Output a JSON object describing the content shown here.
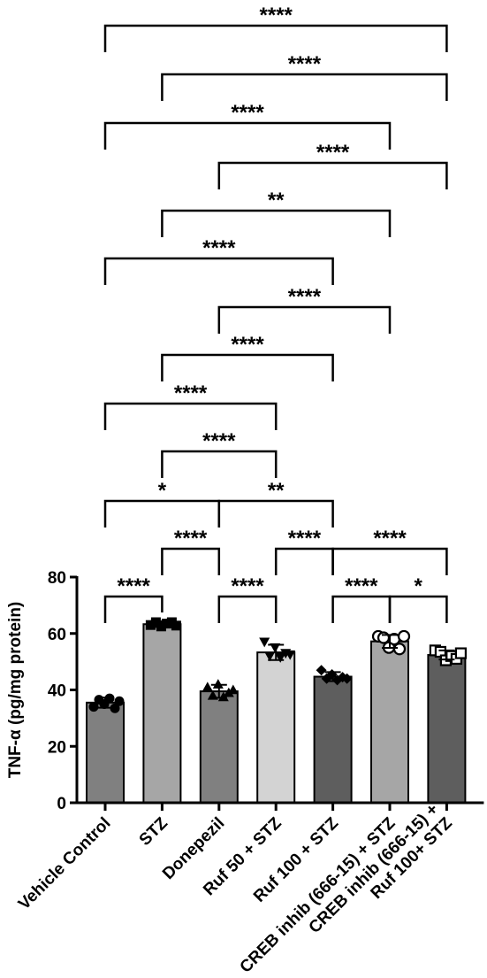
{
  "chart_data": {
    "type": "bar",
    "ylabel": "TNF-α  (pg/mg protein)",
    "ylim": [
      0,
      80
    ],
    "yticks": [
      0,
      20,
      40,
      60,
      80
    ],
    "categories": [
      [
        "Vehicle Control"
      ],
      [
        "STZ"
      ],
      [
        "Donepezil"
      ],
      [
        "Ruf 50 + STZ"
      ],
      [
        "Ruf 100 + STZ"
      ],
      [
        "CREB inhib (666-15) + STZ"
      ],
      [
        "CREB inhib (666-15) +",
        "Ruf 100+ STZ"
      ]
    ],
    "values": [
      35.5,
      63.3,
      39.5,
      53.3,
      44.7,
      57.2,
      52.4
    ],
    "errors": [
      1.8,
      1.0,
      2.3,
      2.7,
      1.6,
      2.3,
      1.6
    ],
    "bar_colors": [
      "#808080",
      "#a6a6a6",
      "#808080",
      "#d3d3d3",
      "#5e5e5e",
      "#a6a6a6",
      "#5e5e5e"
    ],
    "markers": [
      "circle-filled",
      "square-filled",
      "triangle-filled",
      "triangle-down-filled",
      "diamond-filled",
      "circle-open",
      "square-open"
    ],
    "points": [
      [
        34.0,
        36.5,
        35.0,
        37.0,
        33.5,
        36.0
      ],
      [
        63.0,
        64.0,
        62.5,
        63.5,
        64.0,
        62.8
      ],
      [
        41.0,
        38.0,
        42.0,
        37.5,
        39.0,
        40.0
      ],
      [
        57.0,
        52.0,
        55.0,
        51.5,
        53.0,
        52.5
      ],
      [
        47.0,
        44.0,
        45.5,
        43.5,
        44.5,
        44.0
      ],
      [
        59.0,
        58.5,
        55.0,
        58.0,
        54.5,
        59.0
      ],
      [
        54.0,
        53.5,
        50.5,
        52.0,
        51.0,
        53.0
      ]
    ],
    "comparisons": [
      {
        "a": 0,
        "b": 6,
        "label": "****"
      },
      {
        "a": 1,
        "b": 6,
        "label": "****"
      },
      {
        "a": 0,
        "b": 5,
        "label": "****"
      },
      {
        "a": 2,
        "b": 6,
        "label": "****"
      },
      {
        "a": 1,
        "b": 5,
        "label": "**"
      },
      {
        "a": 0,
        "b": 4,
        "label": "****"
      },
      {
        "a": 2,
        "b": 5,
        "label": "****"
      },
      {
        "a": 1,
        "b": 4,
        "label": "****"
      },
      {
        "a": 0,
        "b": 3,
        "label": "****"
      },
      {
        "a": 1,
        "b": 3,
        "label": "****"
      },
      {
        "a": 0,
        "b": 2,
        "label": "*"
      },
      {
        "a": 2,
        "b": 4,
        "label": "**"
      },
      {
        "a": 1,
        "b": 2,
        "label": "****"
      },
      {
        "a": 3,
        "b": 4,
        "label": "****"
      },
      {
        "a": 4,
        "b": 6,
        "label": "****"
      },
      {
        "a": 0,
        "b": 1,
        "label": "****"
      },
      {
        "a": 2,
        "b": 3,
        "label": "****"
      },
      {
        "a": 4,
        "b": 5,
        "label": "****"
      },
      {
        "a": 5,
        "b": 6,
        "label": "*"
      }
    ]
  }
}
